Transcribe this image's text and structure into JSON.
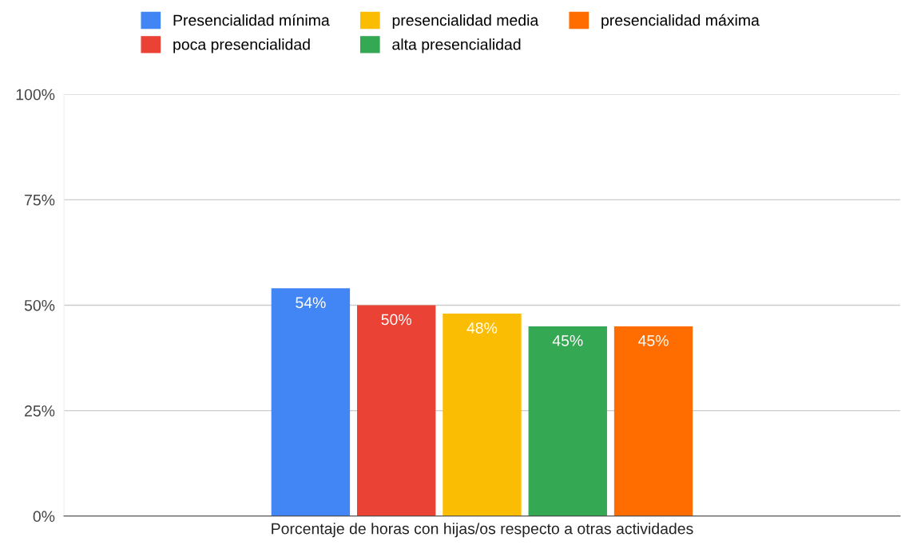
{
  "chart_data": {
    "type": "bar",
    "categories": [
      "Porcentaje de horas con hijas/os respecto a otras actividades"
    ],
    "series": [
      {
        "name": "Presencialidad mínima",
        "color": "#4285f4",
        "values": [
          54
        ],
        "value_labels": [
          "54%"
        ]
      },
      {
        "name": "poca presencialidad",
        "color": "#ea4335",
        "values": [
          50
        ],
        "value_labels": [
          "50%"
        ]
      },
      {
        "name": "presencialidad media",
        "color": "#fbbc04",
        "values": [
          48
        ],
        "value_labels": [
          "48%"
        ]
      },
      {
        "name": "alta presencialidad",
        "color": "#34a853",
        "values": [
          45
        ],
        "value_labels": [
          "45%"
        ]
      },
      {
        "name": "presencialidad máxima",
        "color": "#ff6d01",
        "values": [
          45
        ],
        "value_labels": [
          "45%"
        ]
      }
    ],
    "ylim": [
      0,
      100
    ],
    "yticks": [
      {
        "value": 0,
        "label": "0%"
      },
      {
        "value": 25,
        "label": "25%"
      },
      {
        "value": 50,
        "label": "50%"
      },
      {
        "value": 75,
        "label": "75%"
      },
      {
        "value": 100,
        "label": "100%"
      }
    ],
    "grid": "y",
    "legend": "top"
  }
}
